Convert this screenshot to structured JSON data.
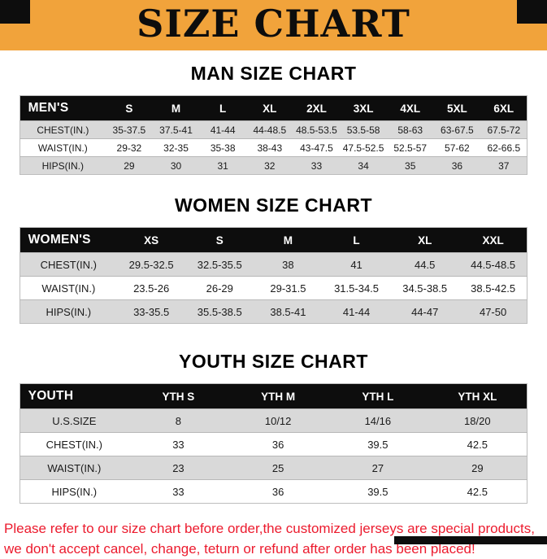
{
  "banner": {
    "title": "SIZE CHART"
  },
  "sections": [
    {
      "id": "men",
      "heading": "MAN SIZE CHART",
      "table": {
        "header": [
          "MEN'S",
          "S",
          "M",
          "L",
          "XL",
          "2XL",
          "3XL",
          "4XL",
          "5XL",
          "6XL"
        ],
        "rows": [
          [
            "CHEST(IN.)",
            "35-37.5",
            "37.5-41",
            "41-44",
            "44-48.5",
            "48.5-53.5",
            "53.5-58",
            "58-63",
            "63-67.5",
            "67.5-72"
          ],
          [
            "WAIST(IN.)",
            "29-32",
            "32-35",
            "35-38",
            "38-43",
            "43-47.5",
            "47.5-52.5",
            "52.5-57",
            "57-62",
            "62-66.5"
          ],
          [
            "HIPS(IN.)",
            "29",
            "30",
            "31",
            "32",
            "33",
            "34",
            "35",
            "36",
            "37"
          ]
        ]
      }
    },
    {
      "id": "women",
      "heading": "WOMEN SIZE CHART",
      "table": {
        "header": [
          "WOMEN'S",
          "XS",
          "S",
          "M",
          "L",
          "XL",
          "XXL"
        ],
        "rows": [
          [
            "CHEST(IN.)",
            "29.5-32.5",
            "32.5-35.5",
            "38",
            "41",
            "44.5",
            "44.5-48.5"
          ],
          [
            "WAIST(IN.)",
            "23.5-26",
            "26-29",
            "29-31.5",
            "31.5-34.5",
            "34.5-38.5",
            "38.5-42.5"
          ],
          [
            "HIPS(IN.)",
            "33-35.5",
            "35.5-38.5",
            "38.5-41",
            "41-44",
            "44-47",
            "47-50"
          ]
        ]
      }
    },
    {
      "id": "youth",
      "heading": "YOUTH SIZE CHART",
      "table": {
        "header": [
          "YOUTH",
          "YTH S",
          "YTH M",
          "YTH L",
          "YTH XL"
        ],
        "rows": [
          [
            "U.S.SIZE",
            "8",
            "10/12",
            "14/16",
            "18/20"
          ],
          [
            "CHEST(IN.)",
            "33",
            "36",
            "39.5",
            "42.5"
          ],
          [
            "WAIST(IN.)",
            "23",
            "25",
            "27",
            "29"
          ],
          [
            "HIPS(IN.)",
            "33",
            "36",
            "39.5",
            "42.5"
          ]
        ]
      }
    }
  ],
  "footer": {
    "line1": "Please refer to our size chart before order,the customized jerseys are special products,",
    "line2": "we don't accept cancel, change, teturn or refund after order has been placed!"
  },
  "colors": {
    "banner_orange": "#F1A33B",
    "ink_black": "#0D0D0D",
    "row_shade_gray": "#D9D9D9",
    "footer_red": "#EC1B2E"
  }
}
